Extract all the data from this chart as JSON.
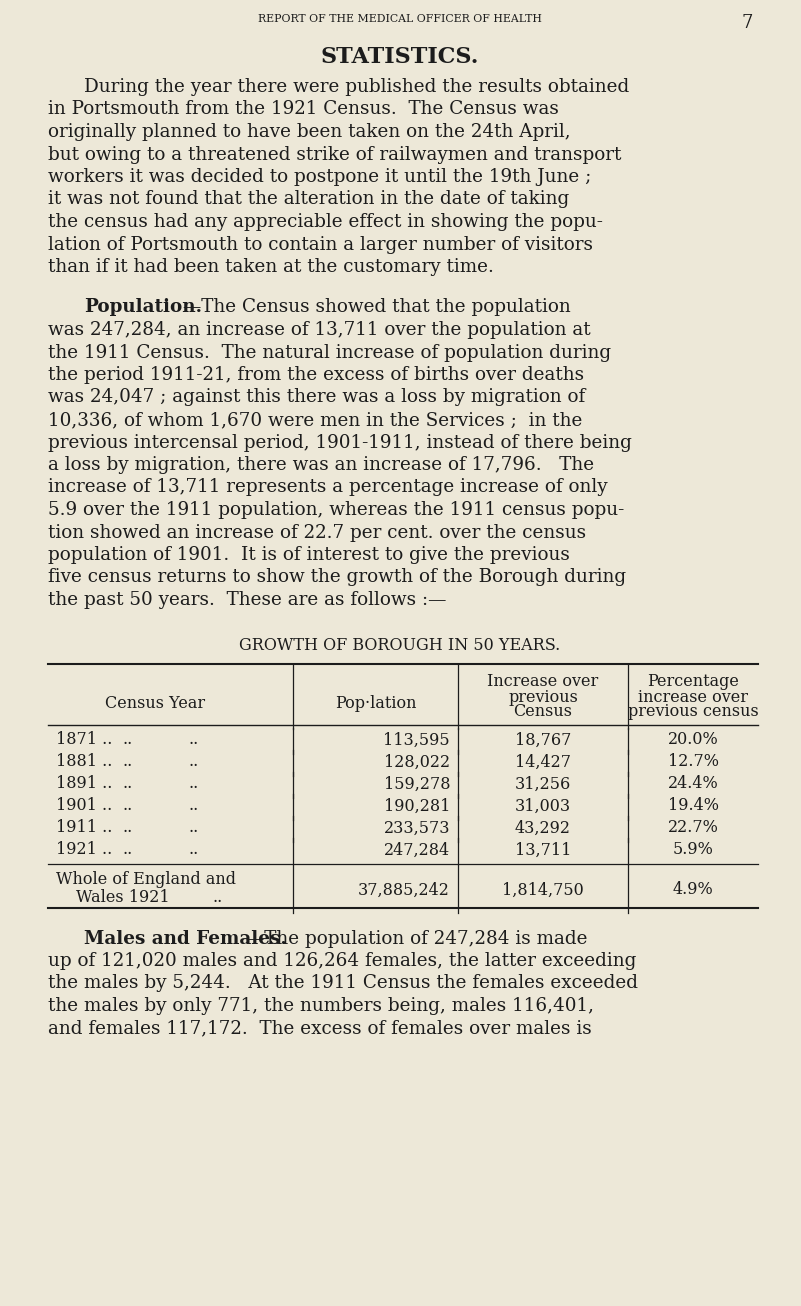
{
  "bg_color": "#ede8d8",
  "text_color": "#1c1c1c",
  "header_text": "REPORT OF THE MEDICAL OFFICER OF HEALTH",
  "page_num": "7",
  "title": "STATISTICS.",
  "para1_lines": [
    "During the year there were published the results obtained",
    "in Portsmouth from the 1921 Census.  The Census was",
    "originally planned to have been taken on the 24th April,",
    "but owing to a threatened strike of railwaymen and transport",
    "workers it was decided to postpone it until the 19th June ;",
    "it was not found that the alteration in the date of taking",
    "the census had any appreciable effect in showing the popu-",
    "lation of Portsmouth to contain a larger number of visitors",
    "than if it had been taken at the customary time."
  ],
  "pop_bold": "Population.",
  "pop_dash": "—The Census showed that the population",
  "pop_lines": [
    "was 247,284, an increase of 13,711 over the population at",
    "the 1911 Census.  The natural increase of population during",
    "the period 1911-21, from the excess of births over deaths",
    "was 24,047 ; against this there was a loss by migration of",
    "10,336, of whom 1,670 were men in the Services ;  in the",
    "previous intercensal period, 1901-1911, instead of there being",
    "a loss by migration, there was an increase of 17,796.   The",
    "increase of 13,711 represents a percentage increase of only",
    "5.9 over the 1911 population, whereas the 1911 census popu-",
    "tion showed an increase of 22.7 per cent. over the census",
    "population of 1901.  It is of interest to give the previous",
    "five census returns to show the growth of the Borough during",
    "the past 50 years.  These are as follows :—"
  ],
  "table_title": "GROWTH OF BOROUGH IN 50 YEARS.",
  "col0_header": "Census Year",
  "col1_header": "Pop·lation",
  "col2_header": [
    "Increase over",
    "previous",
    "Census"
  ],
  "col3_header": [
    "Percentage",
    "increase over",
    "previous census"
  ],
  "table_rows": [
    [
      "1871",
      "113,595",
      "18,767",
      "20.0%"
    ],
    [
      "1881",
      "128,022",
      "14,427",
      "12.7%"
    ],
    [
      "1891",
      "159,278",
      "31,256",
      "24.4%"
    ],
    [
      "1901",
      "190,281",
      "31,003",
      "19.4%"
    ],
    [
      "1911",
      "233,573",
      "43,292",
      "22.7%"
    ],
    [
      "1921",
      "247,284",
      "13,711",
      "5.9%"
    ]
  ],
  "footer_col0_line1": "Whole of England and",
  "footer_col0_line2": "Wales 1921",
  "footer_col0_dots": "..",
  "footer_col1": "37,885,242",
  "footer_col2": "1,814,750",
  "footer_col3": "4.9%",
  "mf_bold": "Males and Females.",
  "mf_dash": "—The population of 247,284 is made",
  "mf_lines": [
    "up of 121,020 males and 126,264 females, the latter exceeding",
    "the males by 5,244.   At the 1911 Census the females exceeded",
    "the males by only 771, the numbers being, males 116,401,",
    "and females 117,172.  The excess of females over males is"
  ]
}
